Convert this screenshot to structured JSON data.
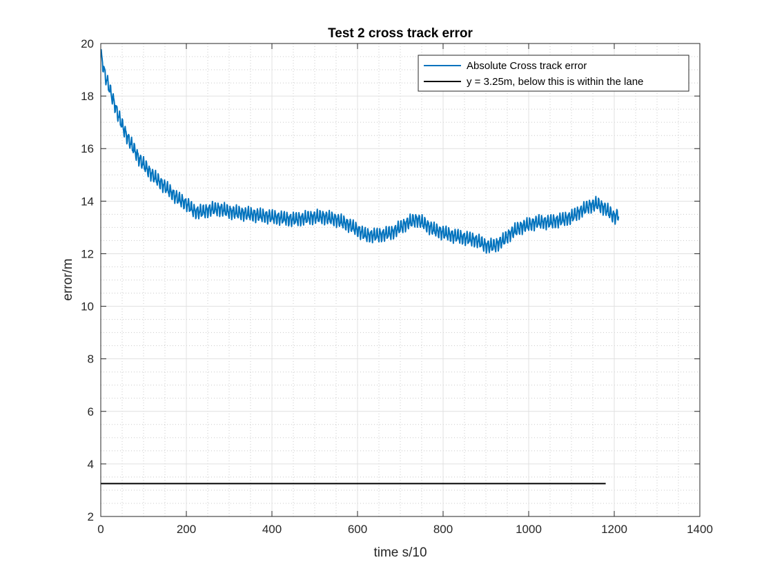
{
  "chart_data": {
    "type": "line",
    "title": "Test 2 cross track error",
    "xlabel": "time s/10",
    "ylabel": "error/m",
    "xlim": [
      0,
      1400
    ],
    "ylim": [
      2,
      20
    ],
    "xticks": [
      0,
      200,
      400,
      600,
      800,
      1000,
      1200,
      1400
    ],
    "yticks": [
      2,
      4,
      6,
      8,
      10,
      12,
      14,
      16,
      18,
      20
    ],
    "xtick_labels": [
      "0",
      "200",
      "400",
      "600",
      "800",
      "1000",
      "1200",
      "1400"
    ],
    "ytick_labels": [
      "2",
      "4",
      "6",
      "8",
      "10",
      "12",
      "14",
      "16",
      "18",
      "20"
    ],
    "grid": "major and minor",
    "legend_position": "top-right",
    "series": [
      {
        "name": "Absolute Cross track error",
        "color": "#0072BD",
        "oscillation_amplitude": 0.3,
        "x": [
          0,
          5,
          10,
          20,
          30,
          40,
          50,
          60,
          70,
          80,
          90,
          100,
          120,
          140,
          160,
          180,
          200,
          220,
          240,
          260,
          280,
          300,
          350,
          400,
          450,
          500,
          520,
          550,
          580,
          600,
          620,
          650,
          680,
          700,
          720,
          740,
          760,
          780,
          800,
          820,
          850,
          880,
          900,
          920,
          940,
          960,
          980,
          1000,
          1020,
          1050,
          1080,
          1100,
          1120,
          1140,
          1160,
          1180,
          1200,
          1210
        ],
        "y": [
          19.6,
          19.2,
          18.8,
          18.3,
          17.8,
          17.3,
          16.9,
          16.5,
          16.2,
          15.9,
          15.6,
          15.4,
          15.0,
          14.7,
          14.4,
          14.1,
          13.9,
          13.6,
          13.6,
          13.7,
          13.7,
          13.6,
          13.5,
          13.4,
          13.3,
          13.4,
          13.4,
          13.3,
          13.1,
          12.9,
          12.7,
          12.7,
          12.8,
          13.0,
          13.2,
          13.3,
          13.1,
          12.9,
          12.8,
          12.7,
          12.6,
          12.5,
          12.3,
          12.3,
          12.5,
          12.8,
          13.0,
          13.1,
          13.2,
          13.2,
          13.3,
          13.4,
          13.6,
          13.8,
          13.9,
          13.7,
          13.4,
          13.5
        ]
      },
      {
        "name": "y = 3.25m, below this is within the lane",
        "color": "#000000",
        "x": [
          0,
          1180
        ],
        "y": [
          3.25,
          3.25
        ]
      }
    ]
  }
}
